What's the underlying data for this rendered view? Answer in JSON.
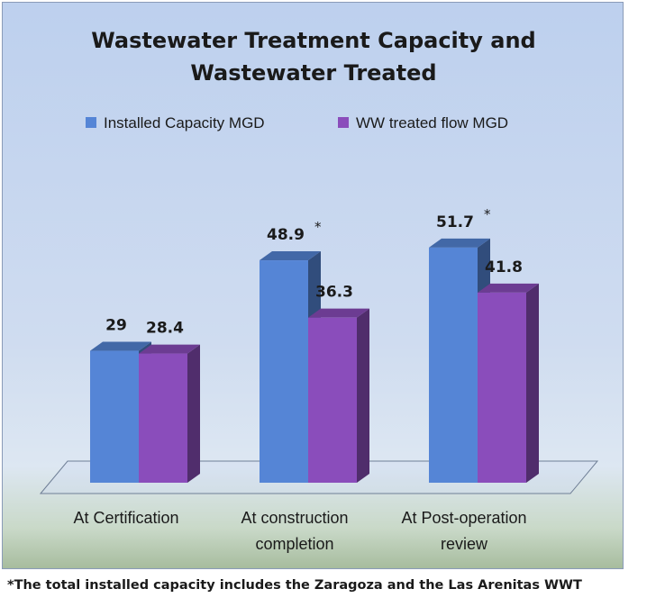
{
  "chart_data": {
    "type": "bar",
    "title_lines": [
      "Wastewater Treatment Capacity and",
      "Wastewater Treated"
    ],
    "categories": [
      [
        "At Certification"
      ],
      [
        "At construction",
        "completion"
      ],
      [
        "At Post-operation",
        "review"
      ]
    ],
    "series": [
      {
        "name": "Installed Capacity MGD",
        "values": [
          29,
          48.9,
          51.7
        ],
        "labels": [
          "29",
          "48.9",
          "51.7"
        ],
        "label_markers": [
          "",
          "*",
          "*"
        ],
        "color": "#5585d6"
      },
      {
        "name": "WW treated flow MGD",
        "values": [
          28.4,
          36.3,
          41.8
        ],
        "labels": [
          "28.4",
          "36.3",
          "41.8"
        ],
        "color": "#8a4dbb"
      }
    ],
    "legend_position": "top",
    "grid": false,
    "three_d": true
  },
  "footnote": "*The total installed capacity includes the Zaragoza and the Las Arenitas WWT"
}
